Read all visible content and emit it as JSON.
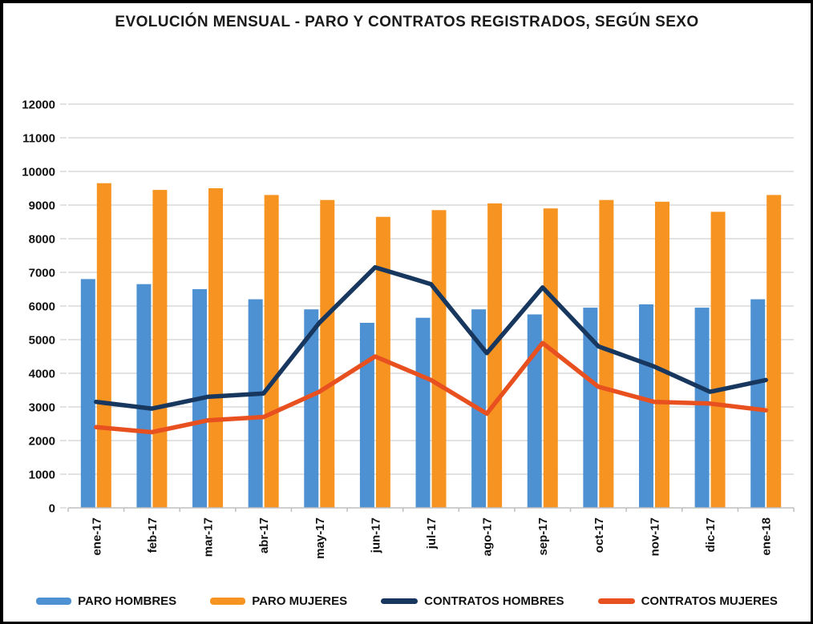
{
  "title": "EVOLUCIÓN MENSUAL - PARO Y CONTRATOS REGISTRADOS, SEGÚN SEXO",
  "colors": {
    "paro_hombres": "#4E91D2",
    "paro_mujeres": "#F79421",
    "contratos_hombres": "#17375E",
    "contratos_mujeres": "#E8501F",
    "gridline": "#D8D8D8",
    "axis": "#BFBFBF",
    "text": "#111111",
    "background": "#FFFFFF",
    "frame_border": "#000000"
  },
  "chart_data": {
    "type": "combo-bar-line",
    "title": "EVOLUCIÓN MENSUAL - PARO Y CONTRATOS REGISTRADOS, SEGÚN SEXO",
    "categories": [
      "ene-17",
      "feb-17",
      "mar-17",
      "abr-17",
      "may-17",
      "jun-17",
      "jul-17",
      "ago-17",
      "sep-17",
      "oct-17",
      "nov-17",
      "dic-17",
      "ene-18"
    ],
    "series": [
      {
        "name": "PARO HOMBRES",
        "type": "bar",
        "color": "#4E91D2",
        "values": [
          6800,
          6650,
          6500,
          6200,
          5900,
          5500,
          5650,
          5900,
          5750,
          5950,
          6050,
          5950,
          6200
        ]
      },
      {
        "name": "PARO MUJERES",
        "type": "bar",
        "color": "#F79421",
        "values": [
          9650,
          9450,
          9500,
          9300,
          9150,
          8650,
          8850,
          9050,
          8900,
          9150,
          9100,
          8800,
          9300
        ]
      },
      {
        "name": "CONTRATOS HOMBRES",
        "type": "line",
        "color": "#17375E",
        "values": [
          3150,
          2950,
          3300,
          3400,
          5500,
          7150,
          6650,
          4600,
          6550,
          4800,
          4200,
          3450,
          3800
        ]
      },
      {
        "name": "CONTRATOS MUJERES",
        "type": "line",
        "color": "#E8501F",
        "values": [
          2400,
          2250,
          2600,
          2700,
          3450,
          4500,
          3800,
          2800,
          4900,
          3600,
          3150,
          3100,
          2900
        ]
      }
    ],
    "xlabel": "",
    "ylabel": "",
    "ylim": [
      0,
      12000
    ],
    "ytick_step": 1000,
    "ytick_labels": [
      "0",
      "1000",
      "2000",
      "3000",
      "4000",
      "5000",
      "6000",
      "7000",
      "8000",
      "9000",
      "10000",
      "11000",
      "12000"
    ],
    "grid": true,
    "legend_position": "bottom",
    "x_labels_rotated_90": true
  }
}
